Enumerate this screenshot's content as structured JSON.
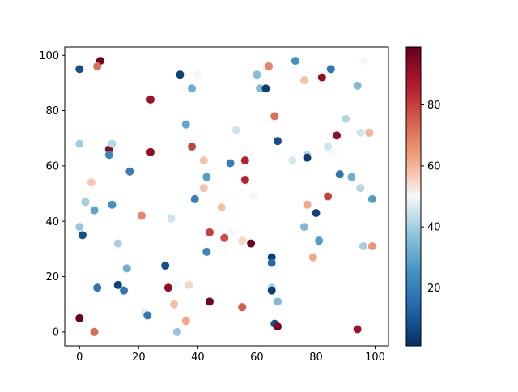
{
  "chart_data": {
    "type": "scatter",
    "title": "",
    "xlabel": "",
    "ylabel": "",
    "xlim": [
      -5,
      104.5
    ],
    "ylim": [
      -5,
      103
    ],
    "x_ticks": [
      "0",
      "20",
      "40",
      "60",
      "80",
      "100"
    ],
    "y_ticks": [
      "0",
      "20",
      "40",
      "60",
      "80",
      "100"
    ],
    "grid": false,
    "colormap": "RdBu_r",
    "colorbar": {
      "vmin": 1,
      "vmax": 99,
      "ticks": [
        "20",
        "40",
        "60",
        "80"
      ]
    },
    "points": [
      {
        "x": 0,
        "y": 95,
        "c": 8
      },
      {
        "x": 7,
        "y": 98,
        "c": 98
      },
      {
        "x": 6,
        "y": 96,
        "c": 72
      },
      {
        "x": 34,
        "y": 93,
        "c": 5
      },
      {
        "x": 38,
        "y": 88,
        "c": 32
      },
      {
        "x": 40,
        "y": 93,
        "c": 50
      },
      {
        "x": 24,
        "y": 84,
        "c": 90
      },
      {
        "x": 60,
        "y": 93,
        "c": 36
      },
      {
        "x": 61,
        "y": 88,
        "c": 36
      },
      {
        "x": 63,
        "y": 88,
        "c": 4
      },
      {
        "x": 64,
        "y": 96,
        "c": 68
      },
      {
        "x": 73,
        "y": 98,
        "c": 25
      },
      {
        "x": 76,
        "y": 91,
        "c": 58
      },
      {
        "x": 82,
        "y": 92,
        "c": 92
      },
      {
        "x": 85,
        "y": 95,
        "c": 18
      },
      {
        "x": 94,
        "y": 89,
        "c": 35
      },
      {
        "x": 96,
        "y": 98,
        "c": 50
      },
      {
        "x": 36,
        "y": 75,
        "c": 30
      },
      {
        "x": 66,
        "y": 78,
        "c": 72
      },
      {
        "x": 53,
        "y": 73,
        "c": 45
      },
      {
        "x": 90,
        "y": 77,
        "c": 42
      },
      {
        "x": 87,
        "y": 71,
        "c": 92
      },
      {
        "x": 95,
        "y": 72,
        "c": 45
      },
      {
        "x": 98,
        "y": 72,
        "c": 60
      },
      {
        "x": 0,
        "y": 68,
        "c": 40
      },
      {
        "x": 10,
        "y": 66,
        "c": 93
      },
      {
        "x": 10,
        "y": 64,
        "c": 22
      },
      {
        "x": 11,
        "y": 68,
        "c": 42
      },
      {
        "x": 24,
        "y": 65,
        "c": 92
      },
      {
        "x": 38,
        "y": 67,
        "c": 80
      },
      {
        "x": 42,
        "y": 62,
        "c": 58
      },
      {
        "x": 51,
        "y": 61,
        "c": 20
      },
      {
        "x": 56,
        "y": 62,
        "c": 85
      },
      {
        "x": 67,
        "y": 69,
        "c": 8
      },
      {
        "x": 72,
        "y": 62,
        "c": 46
      },
      {
        "x": 77,
        "y": 64,
        "c": 42
      },
      {
        "x": 77,
        "y": 63,
        "c": 4
      },
      {
        "x": 84,
        "y": 67,
        "c": 45
      },
      {
        "x": 86,
        "y": 65,
        "c": 50
      },
      {
        "x": 17,
        "y": 58,
        "c": 20
      },
      {
        "x": 4,
        "y": 54,
        "c": 57
      },
      {
        "x": 43,
        "y": 56,
        "c": 28
      },
      {
        "x": 42,
        "y": 52,
        "c": 58
      },
      {
        "x": 56,
        "y": 55,
        "c": 85
      },
      {
        "x": 88,
        "y": 57,
        "c": 18
      },
      {
        "x": 92,
        "y": 56,
        "c": 32
      },
      {
        "x": 95,
        "y": 52,
        "c": 42
      },
      {
        "x": 2,
        "y": 47,
        "c": 40
      },
      {
        "x": 5,
        "y": 44,
        "c": 30
      },
      {
        "x": 11,
        "y": 46,
        "c": 25
      },
      {
        "x": 21,
        "y": 42,
        "c": 68
      },
      {
        "x": 39,
        "y": 48,
        "c": 20
      },
      {
        "x": 48,
        "y": 45,
        "c": 58
      },
      {
        "x": 59,
        "y": 49,
        "c": 50
      },
      {
        "x": 77,
        "y": 46,
        "c": 62
      },
      {
        "x": 84,
        "y": 49,
        "c": 80
      },
      {
        "x": 80,
        "y": 43,
        "c": 5
      },
      {
        "x": 99,
        "y": 48,
        "c": 28
      },
      {
        "x": 0,
        "y": 38,
        "c": 38
      },
      {
        "x": 1,
        "y": 35,
        "c": 8
      },
      {
        "x": 13,
        "y": 32,
        "c": 40
      },
      {
        "x": 31,
        "y": 41,
        "c": 45
      },
      {
        "x": 44,
        "y": 36,
        "c": 80
      },
      {
        "x": 49,
        "y": 34,
        "c": 78
      },
      {
        "x": 51,
        "y": 36,
        "c": 50
      },
      {
        "x": 55,
        "y": 33,
        "c": 55
      },
      {
        "x": 58,
        "y": 32,
        "c": 98
      },
      {
        "x": 43,
        "y": 29,
        "c": 22
      },
      {
        "x": 76,
        "y": 38,
        "c": 35
      },
      {
        "x": 81,
        "y": 33,
        "c": 28
      },
      {
        "x": 96,
        "y": 31,
        "c": 40
      },
      {
        "x": 99,
        "y": 31,
        "c": 65
      },
      {
        "x": 65,
        "y": 27,
        "c": 4
      },
      {
        "x": 65,
        "y": 25,
        "c": 14
      },
      {
        "x": 79,
        "y": 27,
        "c": 62
      },
      {
        "x": 16,
        "y": 23,
        "c": 32
      },
      {
        "x": 29,
        "y": 24,
        "c": 8
      },
      {
        "x": 6,
        "y": 16,
        "c": 18
      },
      {
        "x": 13,
        "y": 17,
        "c": 5
      },
      {
        "x": 15,
        "y": 15,
        "c": 18
      },
      {
        "x": 30,
        "y": 16,
        "c": 92
      },
      {
        "x": 33,
        "y": 17,
        "c": 50
      },
      {
        "x": 37,
        "y": 17,
        "c": 55
      },
      {
        "x": 65,
        "y": 16,
        "c": 40
      },
      {
        "x": 65,
        "y": 15,
        "c": 4
      },
      {
        "x": 67,
        "y": 11,
        "c": 35
      },
      {
        "x": 44,
        "y": 11,
        "c": 97
      },
      {
        "x": 22,
        "y": 7,
        "c": 48
      },
      {
        "x": 23,
        "y": 6,
        "c": 18
      },
      {
        "x": 32,
        "y": 10,
        "c": 58
      },
      {
        "x": 36,
        "y": 4,
        "c": 62
      },
      {
        "x": 55,
        "y": 9,
        "c": 75
      },
      {
        "x": 0,
        "y": 5,
        "c": 98
      },
      {
        "x": 5,
        "y": 0,
        "c": 72
      },
      {
        "x": 33,
        "y": 0,
        "c": 38
      },
      {
        "x": 66,
        "y": 3,
        "c": 8
      },
      {
        "x": 67,
        "y": 2,
        "c": 96
      },
      {
        "x": 94,
        "y": 1,
        "c": 90
      }
    ]
  }
}
